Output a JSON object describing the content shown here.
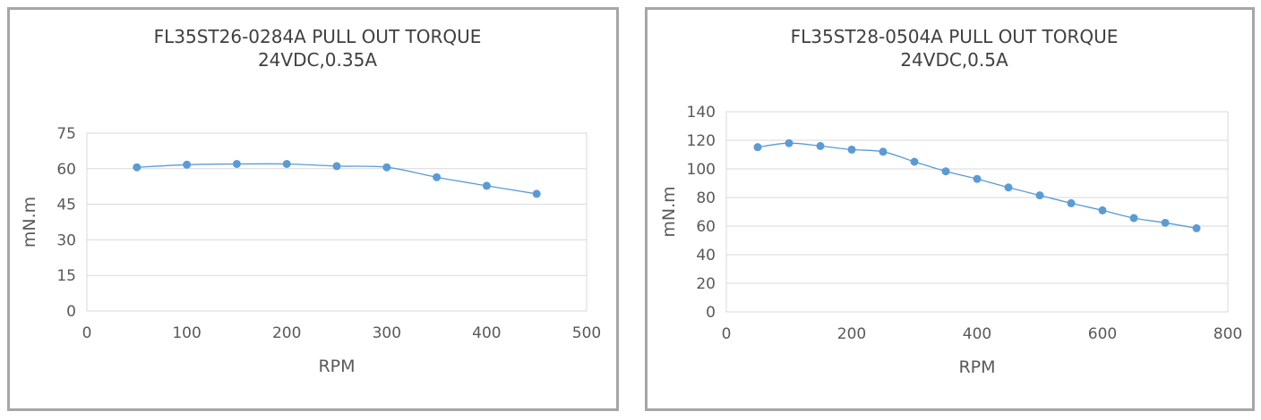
{
  "chart_data": [
    {
      "type": "line",
      "title": "FL35ST26-0284A PULL OUT TORQUE",
      "subtitle": "24VDC,0.35A",
      "xlabel": "RPM",
      "ylabel": "mN.m",
      "xlim": [
        0,
        500
      ],
      "ylim": [
        0,
        75
      ],
      "xticks": [
        0,
        100,
        200,
        300,
        400,
        500
      ],
      "yticks": [
        0,
        15,
        30,
        45,
        60,
        75
      ],
      "grid": "horizontal",
      "color": "#5b9bd5",
      "smooth": true,
      "x": [
        50,
        100,
        150,
        200,
        250,
        300,
        350,
        400,
        450
      ],
      "y": [
        60.6,
        61.7,
        62.0,
        62.0,
        61.1,
        60.6,
        56.4,
        52.8,
        49.4
      ]
    },
    {
      "type": "line",
      "title": "FL35ST28-0504A PULL OUT TORQUE",
      "subtitle": "24VDC,0.5A",
      "xlabel": "RPM",
      "ylabel": "mN.m",
      "xlim": [
        0,
        800
      ],
      "ylim": [
        0,
        140
      ],
      "xticks": [
        0,
        200,
        400,
        600,
        800
      ],
      "yticks": [
        0,
        20,
        40,
        60,
        80,
        100,
        120,
        140
      ],
      "grid": "horizontal",
      "color": "#5b9bd5",
      "smooth": true,
      "x": [
        50,
        100,
        150,
        200,
        250,
        300,
        350,
        400,
        450,
        500,
        550,
        600,
        650,
        700,
        750
      ],
      "y": [
        115.2,
        118,
        116,
        113.5,
        112,
        105,
        98.3,
        93,
        87,
        81.5,
        76,
        71,
        65.6,
        62.3,
        58.5
      ]
    }
  ]
}
